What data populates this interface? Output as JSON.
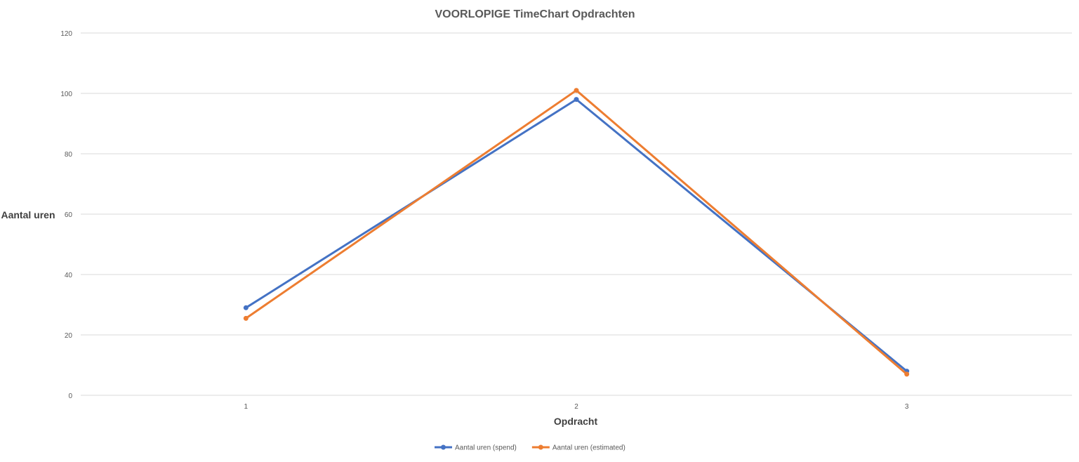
{
  "chart_data": {
    "type": "line",
    "title": "VOORLOPIGE TimeChart Opdrachten",
    "xlabel": "Opdracht",
    "ylabel": "Aantal uren",
    "categories": [
      "1",
      "2",
      "3"
    ],
    "ylim": [
      0,
      120
    ],
    "yticks": [
      0,
      20,
      40,
      60,
      80,
      100,
      120
    ],
    "grid": true,
    "legend_position": "bottom",
    "series": [
      {
        "name": "Aantal uren (spend)",
        "values": [
          29,
          98,
          8
        ],
        "color": "#4472c4"
      },
      {
        "name": "Aantal uren (estimated)",
        "values": [
          25.5,
          101,
          7
        ],
        "color": "#ed7d31"
      }
    ]
  }
}
